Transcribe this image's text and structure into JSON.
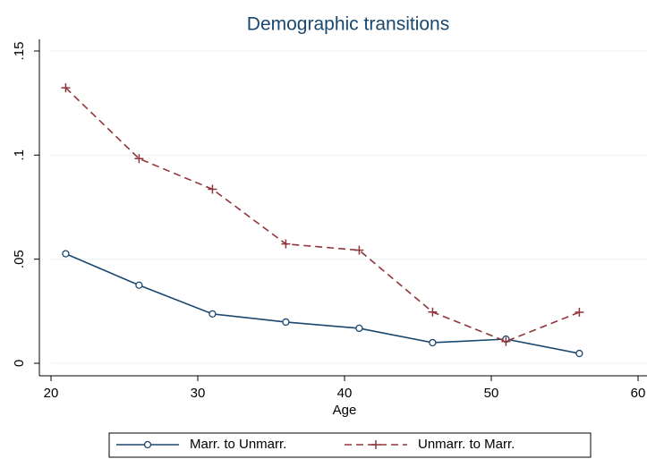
{
  "chart_data": {
    "type": "line",
    "title": "Demographic transitions",
    "x_label": "Age",
    "x": [
      21,
      26,
      31,
      36,
      41,
      46,
      51,
      56
    ],
    "series": [
      {
        "name": "Marr. to Unmarr.",
        "color": "#1a476f",
        "marker": "circle",
        "dash": "solid",
        "values": [
          0.0526,
          0.0375,
          0.0237,
          0.0198,
          0.0168,
          0.0099,
          0.0116,
          0.0047
        ]
      },
      {
        "name": "Unmarr. to Marr.",
        "color": "#90353b",
        "marker": "plus",
        "dash": "dashed",
        "values": [
          0.1323,
          0.0983,
          0.0836,
          0.0573,
          0.0543,
          0.0246,
          0.0105,
          0.0245
        ]
      }
    ],
    "xlim": [
      20,
      60
    ],
    "xticks": [
      20,
      30,
      40,
      50,
      60
    ],
    "ylim": [
      0,
      0.15
    ],
    "yticks": [
      0,
      {
        "value": 0.05,
        "label": ".05"
      },
      {
        "value": 0.1,
        "label": ".1"
      },
      {
        "value": 0.15,
        "label": ".15"
      }
    ],
    "grid": true,
    "legend": "bottom"
  }
}
